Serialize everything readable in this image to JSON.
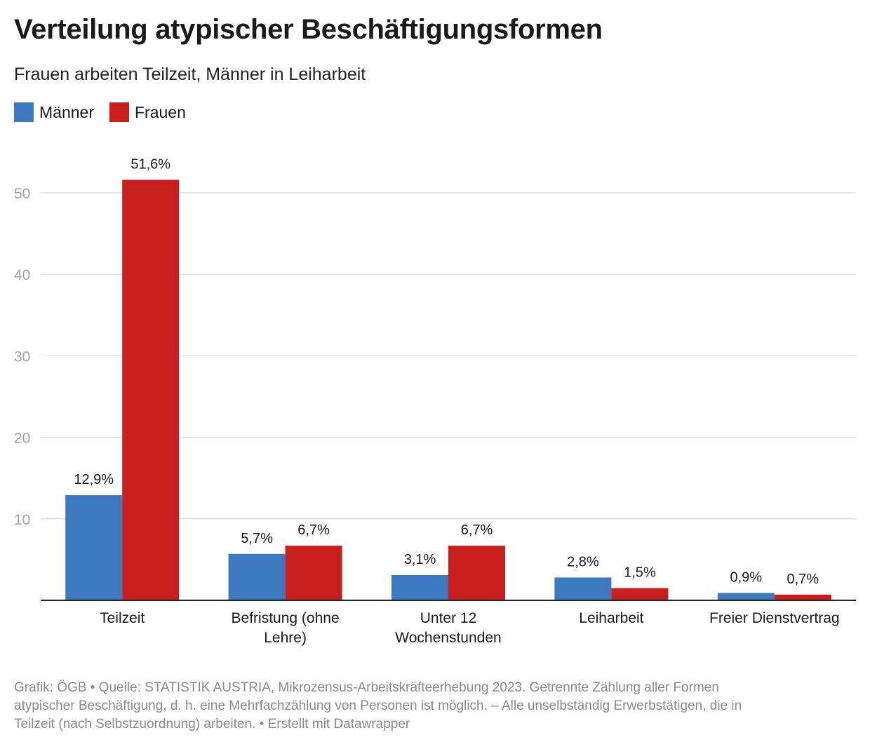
{
  "header": {
    "title": "Verteilung atypischer Beschäftigungsformen",
    "subtitle": "Frauen arbeiten Teilzeit, Männer in Leiharbeit"
  },
  "legend": [
    {
      "name": "Männer",
      "color": "#3d79c1"
    },
    {
      "name": "Frauen",
      "color": "#c81e1e"
    }
  ],
  "chart_data": {
    "type": "bar",
    "categories": [
      [
        "Teilzeit"
      ],
      [
        "Befristung (ohne",
        "Lehre)"
      ],
      [
        "Unter 12",
        "Wochenstunden"
      ],
      [
        "Leiharbeit"
      ],
      [
        "Freier Dienstvertrag"
      ]
    ],
    "series": [
      {
        "name": "Männer",
        "color": "#3d79c1",
        "values": [
          12.9,
          5.7,
          3.1,
          2.8,
          0.9
        ],
        "labels": [
          "12,9%",
          "5,7%",
          "3,1%",
          "2,8%",
          "0,9%"
        ]
      },
      {
        "name": "Frauen",
        "color": "#c81e1e",
        "values": [
          51.6,
          6.7,
          6.7,
          1.5,
          0.7
        ],
        "labels": [
          "51,6%",
          "6,7%",
          "6,7%",
          "1,5%",
          "0,7%"
        ]
      }
    ],
    "yticks": [
      10,
      20,
      30,
      40,
      50
    ],
    "ylim": [
      0,
      55
    ],
    "grid": true,
    "legend_position": "top-left"
  },
  "footer": {
    "line1": "Grafik: ÖGB • Quelle: STATISTIK AUSTRIA, Mikrozensus-Arbeitskräfteerhebung 2023. Getrennte Zählung aller Formen",
    "line2": "atypischer Beschäftigung, d. h. eine Mehrfachzählung von Personen ist möglich. – Alle unselbständig Erwerbstätigen, die in",
    "line3": "Teilzeit (nach Selbstzuordnung) arbeiten. • Erstellt mit Datawrapper"
  }
}
